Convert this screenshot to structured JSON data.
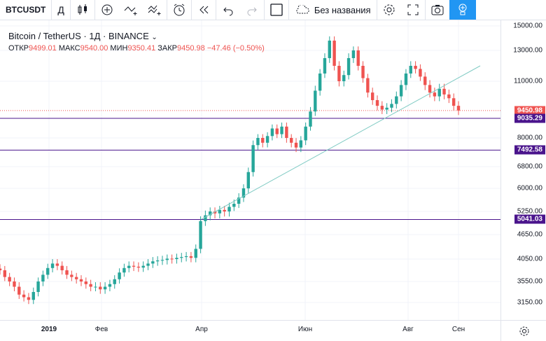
{
  "toolbar": {
    "symbol": "BTCUSDT",
    "interval": "Д",
    "chart_name": "Без названия",
    "icons": [
      "candles-icon",
      "indicator-add-icon",
      "compare-icon",
      "indicators-icon",
      "alert-icon",
      "replay-icon",
      "undo-icon",
      "redo-icon",
      "layout-icon",
      "cloud-icon",
      "settings-icon",
      "fullscreen-icon",
      "snapshot-icon",
      "publish-icon"
    ]
  },
  "legend": {
    "title": "Bitcoin / TetherUS · 1Д · BINANCE",
    "open_label": "ОТКР",
    "open": "9499.01",
    "high_label": "МАКС",
    "high": "9540.00",
    "low_label": "МИН",
    "low": "9350.41",
    "close_label": "ЗАКР",
    "close": "9450.98",
    "change": "−47.46 (−0.50%)"
  },
  "price_scale": {
    "ticks": [
      "15000.00",
      "13000.00",
      "11000.00",
      "8000.00",
      "6800.00",
      "6000.00",
      "5250.00",
      "4650.00",
      "4050.00",
      "3550.00",
      "3150.00"
    ],
    "labels": [
      {
        "text": "9450.98",
        "color": "#ef5350"
      },
      {
        "text": "9035.29",
        "color": "#4a148c"
      },
      {
        "text": "7492.58",
        "color": "#4a148c"
      },
      {
        "text": "5041.03",
        "color": "#4a148c"
      }
    ]
  },
  "time_axis": {
    "ticks": [
      "2019",
      "Фев",
      "Апр",
      "Июн",
      "Авг",
      "Сен"
    ]
  },
  "colors": {
    "up": "#26a69a",
    "down": "#ef5350",
    "level": "#4a148c",
    "trend": "#80cbc4"
  },
  "chart_data": {
    "type": "candlestick",
    "title": "Bitcoin / TetherUS · 1Д · BINANCE",
    "x_ticks": [
      "2019",
      "Фев",
      "Апр",
      "Июн",
      "Авг",
      "Сен"
    ],
    "y_ticks": [
      15000,
      13000,
      11000,
      8000,
      6800,
      6000,
      5250,
      4650,
      4050,
      3550,
      3150
    ],
    "horizontal_levels": [
      9035.29,
      7492.58,
      5041.03
    ],
    "last_price": 9450.98,
    "series": [
      {
        "values": [
          3800,
          3650,
          3550,
          3450,
          3300,
          3250,
          3200,
          3350,
          3550,
          3700,
          3850,
          3950,
          3900,
          3800,
          3700,
          3650,
          3600,
          3550,
          3500,
          3450,
          3450,
          3400,
          3450,
          3500,
          3600,
          3750,
          3850,
          3900,
          3880,
          3860,
          3900,
          3950,
          4000,
          4020,
          4030,
          4060,
          4050,
          4080,
          4100,
          4120,
          4080,
          4300,
          5000,
          5150,
          5250,
          5200,
          5300,
          5250,
          5400,
          5500,
          5700,
          6000,
          6600,
          7700,
          8000,
          7800,
          8100,
          8500,
          8200,
          8600,
          8000,
          7800,
          7600,
          7900,
          8600,
          9400,
          10500,
          11500,
          12500,
          13800,
          12000,
          11000,
          11400,
          12500,
          13000,
          12000,
          11200,
          10400,
          10000,
          9700,
          9500,
          9600,
          9800,
          10200,
          10800,
          11500,
          12000,
          11800,
          11300,
          10800,
          10400,
          10200,
          10600,
          10300,
          10100,
          9700,
          9450.98
        ]
      }
    ]
  }
}
